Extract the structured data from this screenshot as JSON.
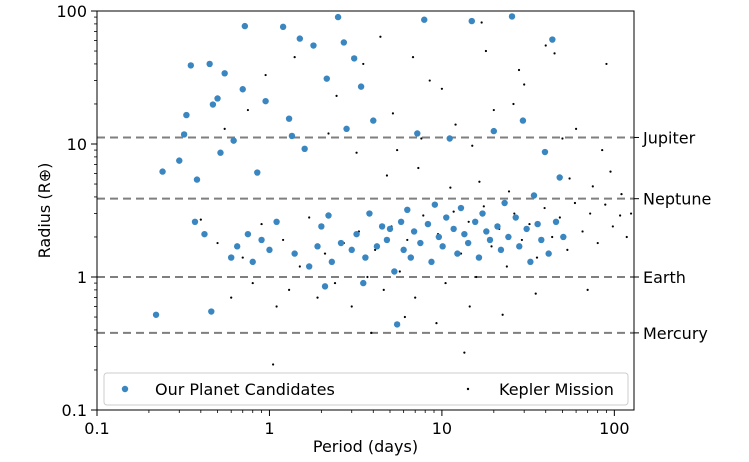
{
  "chart_data": {
    "type": "scatter",
    "xlabel": "Period (days)",
    "ylabel": "Radius (R⊕)",
    "xscale": "log",
    "yscale": "log",
    "xlim": [
      0.1,
      130
    ],
    "ylim": [
      0.1,
      100
    ],
    "x_ticks": [
      {
        "value": 0.1,
        "label": "0.1"
      },
      {
        "value": 1,
        "label": "1"
      },
      {
        "value": 10,
        "label": "10"
      },
      {
        "value": 100,
        "label": "100"
      }
    ],
    "y_ticks": [
      {
        "value": 0.1,
        "label": "0.1"
      },
      {
        "value": 1,
        "label": "1"
      },
      {
        "value": 10,
        "label": "10"
      },
      {
        "value": 100,
        "label": "100"
      }
    ],
    "grid": false,
    "legend": {
      "placement": "bottom",
      "entries": [
        "Our Planet Candidates",
        "Kepler Mission"
      ]
    },
    "reference_lines": [
      {
        "label": "Jupiter",
        "y": 11.2
      },
      {
        "label": "Neptune",
        "y": 3.88
      },
      {
        "label": "Earth",
        "y": 1.0
      },
      {
        "label": "Mercury",
        "y": 0.38
      }
    ],
    "colors": {
      "candidates": "#3a86c0",
      "kepler": "#000000",
      "reference": "#7f7f7f"
    },
    "series": [
      {
        "name": "Our Planet Candidates",
        "marker": "large-circle",
        "points": [
          [
            0.22,
            0.52
          ],
          [
            0.24,
            6.2
          ],
          [
            0.3,
            7.5
          ],
          [
            0.32,
            11.8
          ],
          [
            0.33,
            16.5
          ],
          [
            0.35,
            39
          ],
          [
            0.37,
            2.6
          ],
          [
            0.38,
            5.4
          ],
          [
            0.42,
            2.1
          ],
          [
            0.45,
            40
          ],
          [
            0.46,
            0.55
          ],
          [
            0.47,
            19.8
          ],
          [
            0.5,
            22
          ],
          [
            0.52,
            8.6
          ],
          [
            0.55,
            34
          ],
          [
            0.6,
            1.4
          ],
          [
            0.65,
            1.7
          ],
          [
            0.7,
            25.8
          ],
          [
            0.72,
            77
          ],
          [
            0.75,
            2.1
          ],
          [
            0.8,
            1.3
          ],
          [
            0.85,
            6.1
          ],
          [
            0.9,
            1.9
          ],
          [
            0.95,
            21
          ],
          [
            1.0,
            1.6
          ],
          [
            1.1,
            2.6
          ],
          [
            1.2,
            76
          ],
          [
            1.3,
            15.5
          ],
          [
            1.4,
            1.5
          ],
          [
            1.5,
            62
          ],
          [
            1.6,
            9.2
          ],
          [
            1.7,
            1.2
          ],
          [
            1.8,
            55
          ],
          [
            1.9,
            1.7
          ],
          [
            2.0,
            2.4
          ],
          [
            2.1,
            0.85
          ],
          [
            2.2,
            2.9
          ],
          [
            2.3,
            1.3
          ],
          [
            2.5,
            90
          ],
          [
            2.6,
            1.8
          ],
          [
            2.8,
            13
          ],
          [
            3.0,
            1.6
          ],
          [
            3.2,
            2.1
          ],
          [
            3.4,
            27
          ],
          [
            3.5,
            0.9
          ],
          [
            3.6,
            1.4
          ],
          [
            3.8,
            3.0
          ],
          [
            4.0,
            15
          ],
          [
            4.2,
            1.7
          ],
          [
            4.5,
            2.4
          ],
          [
            4.8,
            1.9
          ],
          [
            5.0,
            2.3
          ],
          [
            5.3,
            1.1
          ],
          [
            5.5,
            0.44
          ],
          [
            5.8,
            2.6
          ],
          [
            6.0,
            1.6
          ],
          [
            6.3,
            3.2
          ],
          [
            6.6,
            1.4
          ],
          [
            6.9,
            2.2
          ],
          [
            7.2,
            12
          ],
          [
            7.5,
            1.8
          ],
          [
            7.9,
            86
          ],
          [
            8.3,
            2.5
          ],
          [
            8.7,
            1.3
          ],
          [
            9.1,
            3.5
          ],
          [
            9.6,
            2.0
          ],
          [
            10.1,
            1.7
          ],
          [
            10.6,
            2.8
          ],
          [
            11.1,
            11
          ],
          [
            11.7,
            2.3
          ],
          [
            12.3,
            1.5
          ],
          [
            12.9,
            3.3
          ],
          [
            13.5,
            2.1
          ],
          [
            14.2,
            1.8
          ],
          [
            14.9,
            84
          ],
          [
            15.6,
            2.6
          ],
          [
            16.4,
            1.4
          ],
          [
            17.2,
            3.0
          ],
          [
            18.1,
            2.2
          ],
          [
            19.0,
            1.9
          ],
          [
            20.0,
            12.5
          ],
          [
            21.0,
            2.4
          ],
          [
            22.0,
            1.6
          ],
          [
            23.1,
            3.6
          ],
          [
            24.3,
            2.0
          ],
          [
            25.5,
            91
          ],
          [
            26.8,
            2.8
          ],
          [
            28.1,
            1.7
          ],
          [
            29.5,
            15
          ],
          [
            31.0,
            2.3
          ],
          [
            32.6,
            1.3
          ],
          [
            34.2,
            4.1
          ],
          [
            35.9,
            2.5
          ],
          [
            37.7,
            1.9
          ],
          [
            39.6,
            8.7
          ],
          [
            41.6,
            1.5
          ],
          [
            43.7,
            61
          ],
          [
            45.9,
            2.6
          ],
          [
            48.2,
            5.6
          ],
          [
            50.6,
            2.0
          ],
          [
            3.1,
            44
          ],
          [
            2.7,
            58
          ],
          [
            1.35,
            11.5
          ],
          [
            2.15,
            31
          ],
          [
            0.62,
            10.6
          ]
        ]
      },
      {
        "name": "Kepler Mission",
        "marker": "small-dot",
        "points": [
          [
            0.4,
            2.7
          ],
          [
            0.5,
            1.8
          ],
          [
            0.6,
            0.7
          ],
          [
            0.7,
            1.4
          ],
          [
            0.8,
            0.9
          ],
          [
            0.9,
            2.5
          ],
          [
            1.1,
            0.6
          ],
          [
            1.2,
            1.9
          ],
          [
            1.3,
            0.8
          ],
          [
            1.5,
            1.2
          ],
          [
            1.7,
            2.8
          ],
          [
            1.9,
            0.7
          ],
          [
            2.1,
            1.5
          ],
          [
            2.4,
            0.9
          ],
          [
            2.7,
            1.8
          ],
          [
            3.0,
            0.6
          ],
          [
            3.3,
            2.2
          ],
          [
            3.7,
            1.0
          ],
          [
            4.1,
            1.6
          ],
          [
            4.6,
            0.8
          ],
          [
            5.1,
            2.4
          ],
          [
            5.7,
            1.1
          ],
          [
            6.3,
            1.9
          ],
          [
            7.0,
            0.7
          ],
          [
            7.8,
            2.9
          ],
          [
            8.6,
            1.3
          ],
          [
            9.5,
            2.1
          ],
          [
            10.5,
            0.9
          ],
          [
            11.7,
            3.1
          ],
          [
            12.9,
            1.5
          ],
          [
            14.3,
            2.6
          ],
          [
            15.8,
            1.0
          ],
          [
            17.5,
            3.4
          ],
          [
            19.4,
            1.7
          ],
          [
            21.5,
            2.3
          ],
          [
            23.8,
            1.2
          ],
          [
            26.3,
            3.0
          ],
          [
            29.1,
            1.9
          ],
          [
            32.2,
            2.5
          ],
          [
            35.6,
            1.4
          ],
          [
            39.4,
            3.3
          ],
          [
            43.6,
            2.0
          ],
          [
            48.3,
            2.8
          ],
          [
            53.4,
            1.6
          ],
          [
            59.1,
            3.6
          ],
          [
            65.4,
            2.2
          ],
          [
            72.4,
            3.0
          ],
          [
            80.1,
            1.8
          ],
          [
            88.6,
            3.5
          ],
          [
            98.0,
            2.4
          ],
          [
            108,
            2.9
          ],
          [
            118,
            2.0
          ],
          [
            0.75,
            18
          ],
          [
            1.4,
            45
          ],
          [
            2.2,
            12
          ],
          [
            3.5,
            40
          ],
          [
            5.5,
            9
          ],
          [
            8.5,
            30
          ],
          [
            12,
            14
          ],
          [
            18,
            50
          ],
          [
            26,
            20
          ],
          [
            40,
            55
          ],
          [
            60,
            13
          ],
          [
            90,
            40
          ],
          [
            3.9,
            0.38
          ],
          [
            6.1,
            0.5
          ],
          [
            9.3,
            0.45
          ],
          [
            14.5,
            0.6
          ],
          [
            22.5,
            0.52
          ],
          [
            35,
            0.75
          ],
          [
            1.05,
            0.22
          ],
          [
            13.5,
            0.27
          ],
          [
            70,
            0.8
          ],
          [
            55,
            5.5
          ],
          [
            75,
            4.8
          ],
          [
            95,
            6.2
          ],
          [
            110,
            4.2
          ],
          [
            125,
            3.0
          ],
          [
            4.8,
            5.8
          ],
          [
            7.3,
            6.6
          ],
          [
            11.2,
            4.7
          ],
          [
            16.5,
            5.2
          ],
          [
            24.5,
            4.4
          ],
          [
            0.55,
            13
          ],
          [
            0.95,
            33
          ],
          [
            4.4,
            64
          ],
          [
            6.8,
            45
          ],
          [
            17,
            82
          ],
          [
            28,
            36
          ],
          [
            45,
            48
          ],
          [
            2.45,
            23
          ],
          [
            3.2,
            8.6
          ],
          [
            5.2,
            17
          ],
          [
            7.6,
            11
          ],
          [
            10,
            26
          ],
          [
            15,
            9.7
          ],
          [
            20,
            18
          ],
          [
            30,
            28
          ],
          [
            50,
            11
          ],
          [
            85,
            9
          ]
        ]
      }
    ]
  }
}
